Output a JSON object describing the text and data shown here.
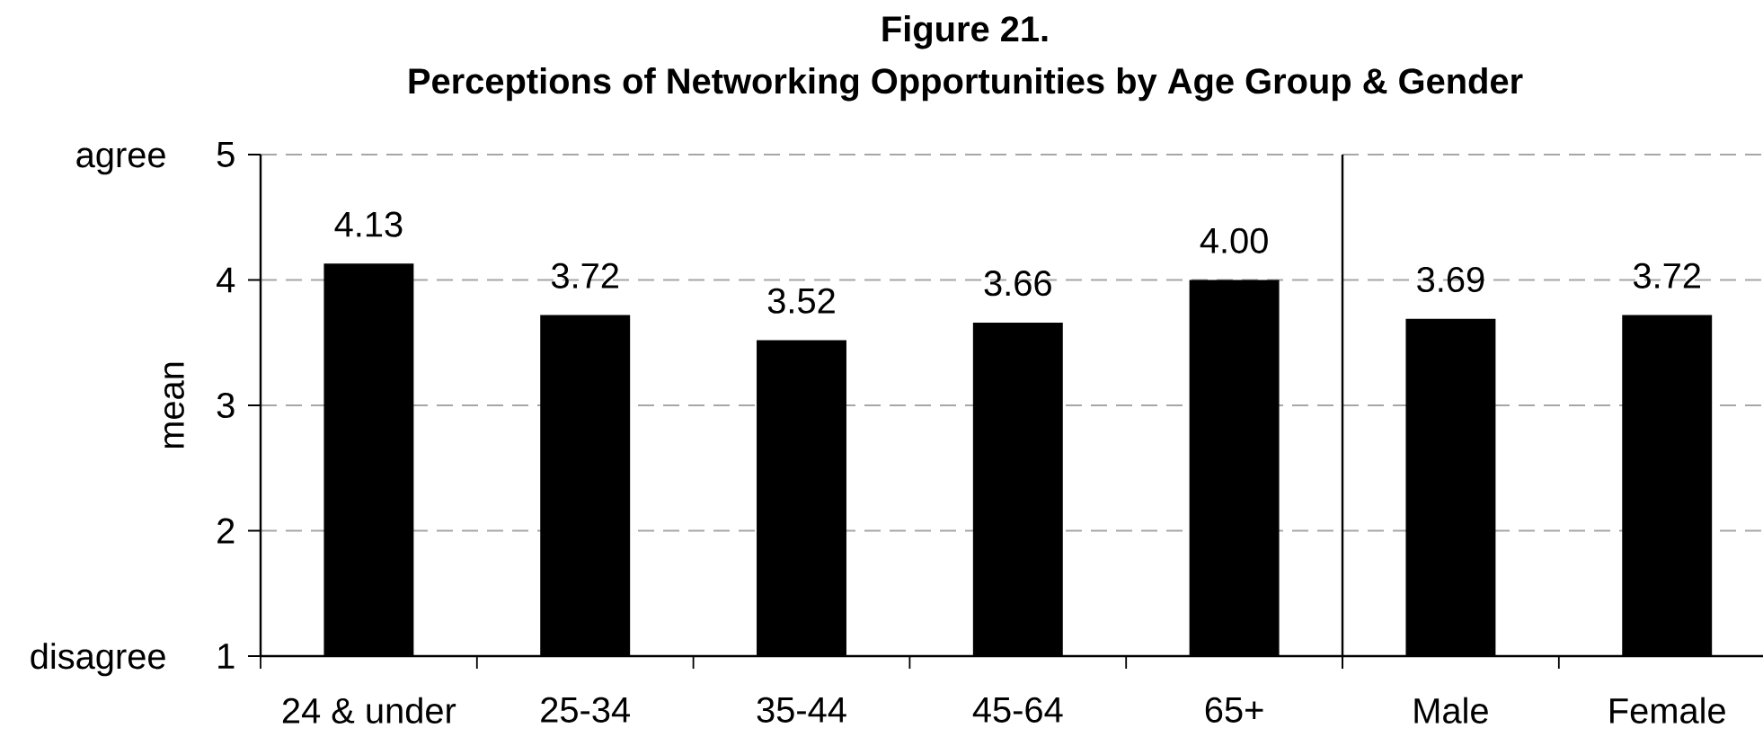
{
  "chart_data": [
    {
      "type": "bar",
      "title": "Figure 21.",
      "subtitle": "Perceptions of Networking Opportunities by Age Group & Gender",
      "ylabel": "mean",
      "categories": [
        "24 & under",
        "25-34",
        "35-44",
        "45-64",
        "65+"
      ],
      "values": [
        4.13,
        3.72,
        3.52,
        3.66,
        4.0
      ],
      "value_labels": [
        "4.13",
        "3.72",
        "3.52",
        "3.66",
        "4.00"
      ],
      "color": "#000000",
      "ylim": [
        1,
        5
      ],
      "yticks": [
        1,
        2,
        3,
        4,
        5
      ],
      "grid": "y",
      "annotations": [
        "agree",
        "disagree"
      ]
    },
    {
      "type": "bar",
      "categories": [
        "Male",
        "Female"
      ],
      "values": [
        3.69,
        3.72
      ],
      "value_labels": [
        "3.69",
        "3.72"
      ],
      "color": "#000000",
      "ylim": [
        1,
        5
      ],
      "yticks": [
        1,
        2,
        3,
        4,
        5
      ],
      "grid": "y",
      "tick_labels": "x"
    }
  ]
}
